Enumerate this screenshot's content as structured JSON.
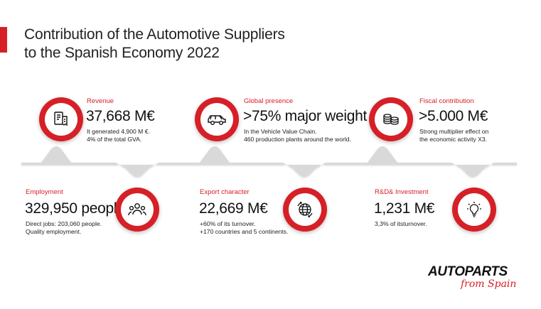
{
  "title": {
    "line1": "Contribution of the Automotive Suppliers",
    "line2": "to the Spanish Economy 2022"
  },
  "colors": {
    "accent": "#d61f26",
    "timeline": "#d9d9d9"
  },
  "top_cards": [
    {
      "label": "Revenue",
      "value": "37,668 M€",
      "desc1": "It generated 4,900 M €.",
      "desc2": "4% of the total GVA.",
      "icon": "receipt-icon"
    },
    {
      "label": "Global presence",
      "value": ">75% major weight",
      "desc1": "In the Vehicle Value Chain.",
      "desc2": "460 production plants around the world.",
      "icon": "car-icon"
    },
    {
      "label": "Fiscal contribution",
      "value": ">5.000 M€",
      "desc1": "Strong multiplier effect on",
      "desc2": "the economic activity X3.",
      "icon": "coins-icon"
    }
  ],
  "bottom_cards": [
    {
      "label": "Employment",
      "value": "329,950 people",
      "desc1": "Direct jobs: 203,060 people.",
      "desc2": "Quality employment.",
      "icon": "people-icon"
    },
    {
      "label": "Export character",
      "value": "22,669 M€",
      "desc1": "+60% of its turnover.",
      "desc2": "+170 countries and 5 continents.",
      "icon": "globe-icon"
    },
    {
      "label": "R&D& Investment",
      "value": "1,231 M€",
      "desc1": "3,3% of itsturnover.",
      "desc2": "",
      "icon": "lightbulb-icon"
    }
  ],
  "logo": {
    "main": "AUTOPARTS",
    "sub": "from Spain"
  }
}
